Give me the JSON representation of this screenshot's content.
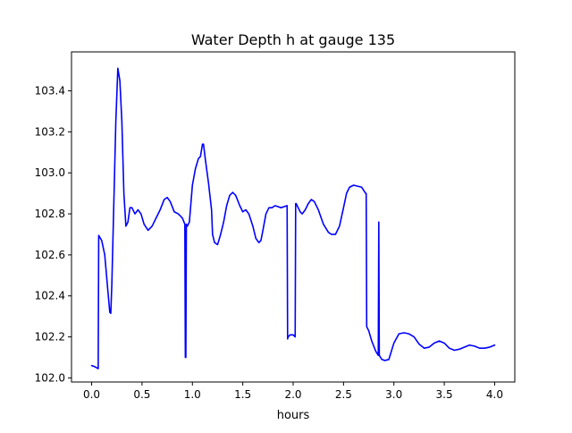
{
  "chart_data": {
    "type": "line",
    "title": "Water Depth h at gauge 135",
    "xlabel": "hours",
    "ylabel": "",
    "xlim": [
      -0.2,
      4.2
    ],
    "ylim": [
      101.98,
      103.59
    ],
    "x_ticks": [
      0.0,
      0.5,
      1.0,
      1.5,
      2.0,
      2.5,
      3.0,
      3.5,
      4.0
    ],
    "x_tick_labels": [
      "0.0",
      "0.5",
      "1.0",
      "1.5",
      "2.0",
      "2.5",
      "3.0",
      "3.5",
      "4.0"
    ],
    "y_ticks": [
      102.0,
      102.2,
      102.4,
      102.6,
      102.8,
      103.0,
      103.2,
      103.4
    ],
    "y_tick_labels": [
      "102.0",
      "102.2",
      "102.4",
      "102.6",
      "102.8",
      "103.0",
      "103.2",
      "103.4"
    ],
    "grid": false,
    "legend": "none",
    "series": [
      {
        "color": "#0000ff",
        "x": [
          0.0,
          0.03,
          0.065,
          0.07,
          0.1,
          0.13,
          0.16,
          0.18,
          0.19,
          0.2,
          0.22,
          0.24,
          0.26,
          0.28,
          0.3,
          0.32,
          0.34,
          0.36,
          0.38,
          0.4,
          0.43,
          0.46,
          0.49,
          0.52,
          0.56,
          0.6,
          0.64,
          0.68,
          0.72,
          0.75,
          0.78,
          0.82,
          0.86,
          0.9,
          0.925,
          0.93,
          0.935,
          0.94,
          0.95,
          0.97,
          0.99,
          1.0,
          1.03,
          1.06,
          1.08,
          1.1,
          1.11,
          1.13,
          1.16,
          1.19,
          1.2,
          1.22,
          1.25,
          1.28,
          1.31,
          1.34,
          1.37,
          1.4,
          1.43,
          1.47,
          1.5,
          1.53,
          1.56,
          1.6,
          1.63,
          1.66,
          1.68,
          1.7,
          1.73,
          1.76,
          1.79,
          1.82,
          1.85,
          1.88,
          1.91,
          1.94,
          1.945,
          1.95,
          1.97,
          2.0,
          2.02,
          2.025,
          2.03,
          2.05,
          2.07,
          2.09,
          2.12,
          2.15,
          2.18,
          2.21,
          2.25,
          2.3,
          2.35,
          2.38,
          2.42,
          2.46,
          2.5,
          2.53,
          2.56,
          2.6,
          2.64,
          2.68,
          2.72,
          2.725,
          2.73,
          2.75,
          2.78,
          2.82,
          2.845,
          2.85,
          2.855,
          2.88,
          2.91,
          2.95,
          3.0,
          3.05,
          3.1,
          3.15,
          3.2,
          3.25,
          3.3,
          3.35,
          3.4,
          3.45,
          3.5,
          3.55,
          3.6,
          3.65,
          3.7,
          3.75,
          3.8,
          3.85,
          3.9,
          3.95,
          4.0
        ],
        "y": [
          102.06,
          102.055,
          102.045,
          102.695,
          102.67,
          102.6,
          102.43,
          102.32,
          102.315,
          102.45,
          102.85,
          103.25,
          103.51,
          103.45,
          103.25,
          102.9,
          102.74,
          102.76,
          102.83,
          102.83,
          102.8,
          102.82,
          102.8,
          102.75,
          102.72,
          102.74,
          102.78,
          102.82,
          102.87,
          102.88,
          102.86,
          102.81,
          102.8,
          102.78,
          102.75,
          102.1,
          102.1,
          102.75,
          102.74,
          102.76,
          102.88,
          102.94,
          103.02,
          103.07,
          103.08,
          103.14,
          103.14,
          103.06,
          102.95,
          102.82,
          102.7,
          102.66,
          102.65,
          102.7,
          102.76,
          102.84,
          102.89,
          102.905,
          102.89,
          102.84,
          102.81,
          102.82,
          102.8,
          102.74,
          102.68,
          102.66,
          102.67,
          102.72,
          102.8,
          102.83,
          102.83,
          102.84,
          102.835,
          102.83,
          102.835,
          102.84,
          102.19,
          102.2,
          102.21,
          102.21,
          102.2,
          102.85,
          102.85,
          102.83,
          102.81,
          102.8,
          102.82,
          102.85,
          102.87,
          102.86,
          102.82,
          102.75,
          102.71,
          102.7,
          102.7,
          102.74,
          102.83,
          102.9,
          102.93,
          102.94,
          102.935,
          102.93,
          102.9,
          102.9,
          102.25,
          102.23,
          102.18,
          102.13,
          102.11,
          102.76,
          102.11,
          102.09,
          102.085,
          102.09,
          102.17,
          102.215,
          102.22,
          102.215,
          102.2,
          102.165,
          102.145,
          102.15,
          102.17,
          102.18,
          102.17,
          102.145,
          102.135,
          102.14,
          102.15,
          102.16,
          102.155,
          102.145,
          102.145,
          102.15,
          102.16
        ]
      }
    ]
  }
}
